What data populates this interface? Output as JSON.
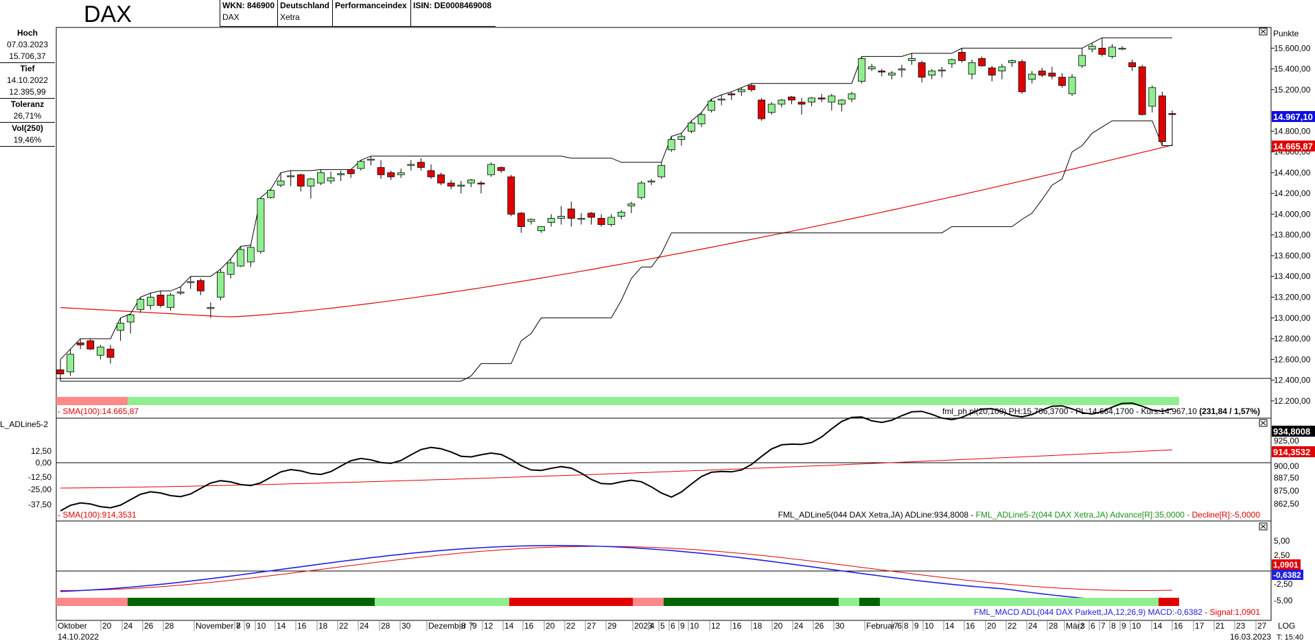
{
  "header": {
    "title": "DAX",
    "cells": [
      {
        "line1": "WKN: 846900",
        "line2": "DAX"
      },
      {
        "line1": "Deutschland",
        "line2": "Xetra"
      },
      {
        "line1": "Performanceindex",
        "line2": ""
      },
      {
        "line1": "ISIN: DE0008469008",
        "line2": ""
      }
    ]
  },
  "left_panel": [
    {
      "label": "Hoch",
      "v1": "07.03.2023",
      "v2": "15.706,37"
    },
    {
      "label": "Tief",
      "v1": "14.10.2022",
      "v2": "12.395,99"
    },
    {
      "label": "Toleranz",
      "v1": "26,71%",
      "v2": ""
    },
    {
      "label": "Vol(250)",
      "v1": "19,46%",
      "v2": ""
    }
  ],
  "main": {
    "unit_label": "Punkte",
    "y_ticks": [
      "15.600,00",
      "15.400,00",
      "15.200,00",
      "14.800,00",
      "14.600,00",
      "14.400,00",
      "14.200,00",
      "14.000,00",
      "13.800,00",
      "13.600,00",
      "13.400,00",
      "13.200,00",
      "13.000,00",
      "12.800,00",
      "12.600,00",
      "12.400,00",
      "12.200,00"
    ],
    "y_tick_values": [
      15600,
      15400,
      15200,
      14800,
      14600,
      14400,
      14200,
      14000,
      13800,
      13600,
      13400,
      13200,
      13000,
      12800,
      12600,
      12400,
      12200
    ],
    "price_tag": "14.967,10",
    "sma_tag": "14.665,87",
    "sma_legend": "- SMA(100):14.665,87",
    "info_legend_prefix": "fml_ph pl(20,100) PH:15.706,3700 - PL:14.664,1700 - Kurs:14.967,10 ",
    "info_legend_bold": "(231,84 / 1,57%)",
    "colors": {
      "up": "#90EE90",
      "down": "#E00000",
      "sma": "#E00000",
      "channel": "#000000",
      "tag_blue": "#1010E0",
      "tag_red": "#E00000"
    }
  },
  "adline": {
    "title": "L_ADLine5-2",
    "y_ticks_left": [
      "12,50",
      "0,00",
      "-12,50",
      "-25,00",
      "-37,50"
    ],
    "y_ticks_right": [
      "925,00",
      "900,00",
      "887,50",
      "875,00",
      "862,50"
    ],
    "tag_black": "934,8008",
    "tag_red": "914,3532",
    "sma_legend": "- SMA(100):914,3531",
    "legend_black": "FML_ADLine5(044 DAX Xetra,JA) ADLine:934,8008 - ",
    "legend_green": "FML_ADLine5-2(044 DAX Xetra,JA) Advance[R]:35,0000 - ",
    "legend_red": "Decline[R]:-5,0000"
  },
  "macd": {
    "y_ticks": [
      "5,00",
      "2,50",
      "-2,50",
      "-5,00"
    ],
    "tag_red": "1,0901",
    "tag_blue": "-0,6382",
    "legend_blue": "FML_MACD ADL(044 DAX Parkett,JA,12,26,9) MACD:-0,6382 - ",
    "legend_red": "Signal:1,0901"
  },
  "x_axis": {
    "labels": [
      {
        "t": "Oktober",
        "x": 84
      },
      {
        "t": "20",
        "x": 149
      },
      {
        "t": "24",
        "x": 180
      },
      {
        "t": "26",
        "x": 210
      },
      {
        "t": "28",
        "x": 240
      },
      {
        "t": "November 7",
        "x": 285
      },
      {
        "t": "8",
        "x": 344
      },
      {
        "t": "9",
        "x": 358
      },
      {
        "t": "10",
        "x": 374
      },
      {
        "t": "14",
        "x": 403
      },
      {
        "t": "16",
        "x": 433
      },
      {
        "t": "18",
        "x": 464
      },
      {
        "t": "22",
        "x": 494
      },
      {
        "t": "24",
        "x": 524
      },
      {
        "t": "28",
        "x": 555
      },
      {
        "t": "30",
        "x": 585
      },
      {
        "t": "Dezember 7",
        "x": 624
      },
      {
        "t": "8",
        "x": 672
      },
      {
        "t": "9",
        "x": 688
      },
      {
        "t": "12",
        "x": 705
      },
      {
        "t": "14",
        "x": 735
      },
      {
        "t": "16",
        "x": 764
      },
      {
        "t": "20",
        "x": 795
      },
      {
        "t": "22",
        "x": 825
      },
      {
        "t": "27",
        "x": 855
      },
      {
        "t": "29",
        "x": 885
      },
      {
        "t": "2023",
        "x": 924
      },
      {
        "t": "4",
        "x": 947
      },
      {
        "t": "5",
        "x": 962
      },
      {
        "t": "6",
        "x": 977
      },
      {
        "t": "9",
        "x": 991
      },
      {
        "t": "10",
        "x": 1005
      },
      {
        "t": "12",
        "x": 1036
      },
      {
        "t": "16",
        "x": 1067
      },
      {
        "t": "18",
        "x": 1097
      },
      {
        "t": "20",
        "x": 1127
      },
      {
        "t": "24",
        "x": 1157
      },
      {
        "t": "26",
        "x": 1187
      },
      {
        "t": "30",
        "x": 1217
      },
      {
        "t": "Februar 6",
        "x": 1262
      },
      {
        "t": "7",
        "x": 1302
      },
      {
        "t": "8",
        "x": 1317
      },
      {
        "t": "9",
        "x": 1332
      },
      {
        "t": "10",
        "x": 1347
      },
      {
        "t": "14",
        "x": 1377
      },
      {
        "t": "16",
        "x": 1407
      },
      {
        "t": "20",
        "x": 1438
      },
      {
        "t": "22",
        "x": 1468
      },
      {
        "t": "24",
        "x": 1498
      },
      {
        "t": "28",
        "x": 1528
      },
      {
        "t": "März",
        "x": 1553
      },
      {
        "t": "3",
        "x": 1574
      },
      {
        "t": "6",
        "x": 1589
      },
      {
        "t": "7",
        "x": 1604
      },
      {
        "t": "8",
        "x": 1619
      },
      {
        "t": "9",
        "x": 1634
      },
      {
        "t": "10",
        "x": 1649
      },
      {
        "t": "14",
        "x": 1680
      },
      {
        "t": "16",
        "x": 1710
      },
      {
        "t": "17",
        "x": 1741
      },
      {
        "t": "21",
        "x": 1771
      },
      {
        "t": "23",
        "x": 1801
      },
      {
        "t": "27",
        "x": 1832
      }
    ],
    "start_date": "14.10.2022",
    "end_date": "16.03.2023",
    "log_label": "LOG",
    "time_label": "T: 15:40"
  },
  "chart_data": {
    "type": "candlestick",
    "title": "DAX",
    "ylabel": "Punkte",
    "ylim": [
      12100,
      15800
    ],
    "candles": [
      [
        12500,
        12600,
        12390,
        12460
      ],
      [
        12480,
        12700,
        12440,
        12650
      ],
      [
        12760,
        12800,
        12700,
        12740
      ],
      [
        12780,
        12800,
        12690,
        12700
      ],
      [
        12640,
        12740,
        12600,
        12720
      ],
      [
        12700,
        12740,
        12560,
        12620
      ],
      [
        12880,
        13000,
        12780,
        12950
      ],
      [
        12960,
        13040,
        12850,
        13030
      ],
      [
        13080,
        13200,
        13050,
        13180
      ],
      [
        13120,
        13240,
        13080,
        13200
      ],
      [
        13220,
        13260,
        13100,
        13120
      ],
      [
        13100,
        13240,
        13070,
        13220
      ],
      [
        13250,
        13300,
        13220,
        13250
      ],
      [
        13350,
        13400,
        13280,
        13350
      ],
      [
        13360,
        13380,
        13220,
        13260
      ],
      [
        13100,
        13150,
        13000,
        13100
      ],
      [
        13200,
        13470,
        13170,
        13440
      ],
      [
        13420,
        13570,
        13380,
        13530
      ],
      [
        13500,
        13690,
        13490,
        13660
      ],
      [
        13540,
        13700,
        13490,
        13680
      ],
      [
        13640,
        14160,
        13620,
        14150
      ],
      [
        14160,
        14240,
        14150,
        14230
      ],
      [
        14280,
        14400,
        14260,
        14320
      ],
      [
        14360,
        14420,
        14270,
        14370
      ],
      [
        14380,
        14390,
        14220,
        14270
      ],
      [
        14270,
        14350,
        14150,
        14340
      ],
      [
        14300,
        14430,
        14280,
        14400
      ],
      [
        14320,
        14410,
        14290,
        14350
      ],
      [
        14380,
        14420,
        14320,
        14390
      ],
      [
        14430,
        14430,
        14350,
        14390
      ],
      [
        14440,
        14520,
        14420,
        14510
      ],
      [
        14520,
        14560,
        14470,
        14530
      ],
      [
        14450,
        14520,
        14340,
        14380
      ],
      [
        14400,
        14420,
        14330,
        14360
      ],
      [
        14380,
        14440,
        14350,
        14400
      ],
      [
        14470,
        14520,
        14420,
        14480
      ],
      [
        14500,
        14540,
        14420,
        14450
      ],
      [
        14420,
        14480,
        14340,
        14360
      ],
      [
        14380,
        14400,
        14280,
        14300
      ],
      [
        14300,
        14330,
        14240,
        14270
      ],
      [
        14270,
        14320,
        14200,
        14280
      ],
      [
        14300,
        14340,
        14260,
        14330
      ],
      [
        14300,
        14320,
        14200,
        14290
      ],
      [
        14380,
        14500,
        14360,
        14480
      ],
      [
        14450,
        14460,
        14400,
        14420
      ],
      [
        14360,
        14380,
        13980,
        14000
      ],
      [
        14010,
        14020,
        13820,
        13880
      ],
      [
        13930,
        13960,
        13900,
        13950
      ],
      [
        13840,
        13880,
        13820,
        13880
      ],
      [
        13920,
        14000,
        13880,
        13960
      ],
      [
        13960,
        14080,
        13900,
        13980
      ],
      [
        14050,
        14120,
        13880,
        13960
      ],
      [
        13950,
        14010,
        13900,
        13960
      ],
      [
        14010,
        14020,
        13900,
        13970
      ],
      [
        13960,
        14000,
        13880,
        13900
      ],
      [
        13900,
        14000,
        13880,
        13970
      ],
      [
        13980,
        14040,
        13950,
        14020
      ],
      [
        14080,
        14120,
        14010,
        14100
      ],
      [
        14160,
        14320,
        14140,
        14300
      ],
      [
        14310,
        14340,
        14280,
        14320
      ],
      [
        14360,
        14500,
        14340,
        14470
      ],
      [
        14620,
        14750,
        14600,
        14720
      ],
      [
        14720,
        14780,
        14660,
        14750
      ],
      [
        14800,
        14900,
        14780,
        14880
      ],
      [
        14870,
        14980,
        14840,
        14960
      ],
      [
        15000,
        15110,
        14980,
        15090
      ],
      [
        15100,
        15150,
        15050,
        15110
      ],
      [
        15160,
        15180,
        15100,
        15150
      ],
      [
        15180,
        15220,
        15140,
        15200
      ],
      [
        15240,
        15260,
        15180,
        15200
      ],
      [
        15100,
        15120,
        14900,
        14920
      ],
      [
        14980,
        15080,
        14960,
        15060
      ],
      [
        15060,
        15110,
        15030,
        15100
      ],
      [
        15130,
        15140,
        15060,
        15100
      ],
      [
        15080,
        15120,
        14960,
        15060
      ],
      [
        15080,
        15130,
        15040,
        15120
      ],
      [
        15120,
        15160,
        15080,
        15110
      ],
      [
        15080,
        15160,
        15000,
        15140
      ],
      [
        15060,
        15110,
        14990,
        15100
      ],
      [
        15110,
        15180,
        15080,
        15160
      ],
      [
        15280,
        15520,
        15260,
        15500
      ],
      [
        15400,
        15450,
        15380,
        15420
      ],
      [
        15380,
        15400,
        15330,
        15370
      ],
      [
        15340,
        15380,
        15300,
        15360
      ],
      [
        15400,
        15440,
        15320,
        15400
      ],
      [
        15480,
        15550,
        15440,
        15500
      ],
      [
        15460,
        15480,
        15270,
        15320
      ],
      [
        15340,
        15400,
        15300,
        15380
      ],
      [
        15380,
        15420,
        15320,
        15390
      ],
      [
        15450,
        15500,
        15410,
        15490
      ],
      [
        15560,
        15600,
        15460,
        15480
      ],
      [
        15350,
        15490,
        15300,
        15460
      ],
      [
        15500,
        15520,
        15420,
        15430
      ],
      [
        15410,
        15430,
        15280,
        15340
      ],
      [
        15380,
        15450,
        15300,
        15420
      ],
      [
        15460,
        15490,
        15420,
        15480
      ],
      [
        15470,
        15490,
        15160,
        15180
      ],
      [
        15300,
        15380,
        15260,
        15350
      ],
      [
        15380,
        15410,
        15320,
        15340
      ],
      [
        15360,
        15420,
        15300,
        15330
      ],
      [
        15320,
        15360,
        15220,
        15240
      ],
      [
        15160,
        15350,
        15140,
        15320
      ],
      [
        15430,
        15600,
        15410,
        15530
      ],
      [
        15590,
        15650,
        15560,
        15620
      ],
      [
        15600,
        15700,
        15520,
        15540
      ],
      [
        15520,
        15640,
        15500,
        15610
      ],
      [
        15600,
        15620,
        15580,
        15600
      ],
      [
        15460,
        15490,
        15380,
        15420
      ],
      [
        15420,
        15440,
        14950,
        14960
      ],
      [
        15040,
        15240,
        14980,
        15220
      ],
      [
        15140,
        15180,
        14660,
        14700
      ],
      [
        14970,
        15000,
        14660,
        14967
      ]
    ],
    "sma100_start": 13100,
    "sma100_end": 14665.87,
    "resistance_end": 15706.37,
    "support_end": 14664.17
  }
}
